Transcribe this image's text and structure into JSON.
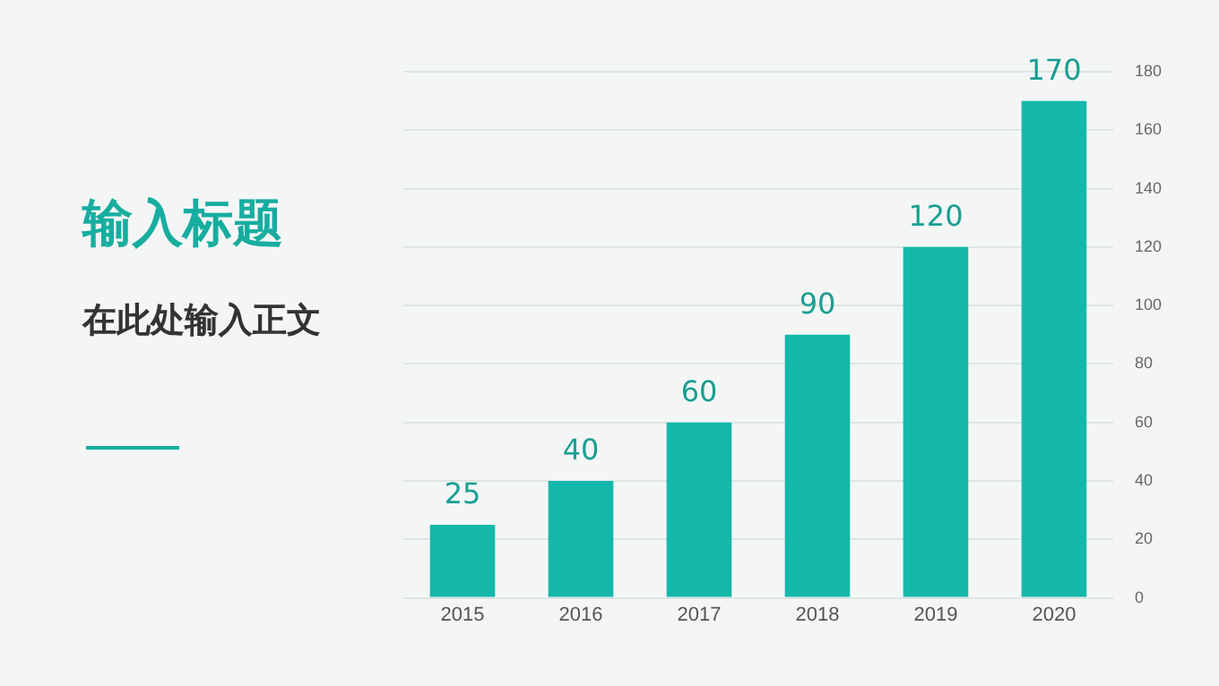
{
  "chart_data": {
    "type": "bar",
    "title": "输入标题",
    "subtitle": "在此处输入正文",
    "categories": [
      "2015",
      "2016",
      "2017",
      "2018",
      "2019",
      "2020"
    ],
    "values": [
      25,
      40,
      60,
      90,
      120,
      170
    ],
    "color": "#14b8aa",
    "ylim": [
      0,
      180
    ],
    "yticks": [
      0,
      20,
      40,
      60,
      80,
      100,
      120,
      140,
      160,
      180
    ],
    "grid": "y",
    "data_labels": true
  }
}
